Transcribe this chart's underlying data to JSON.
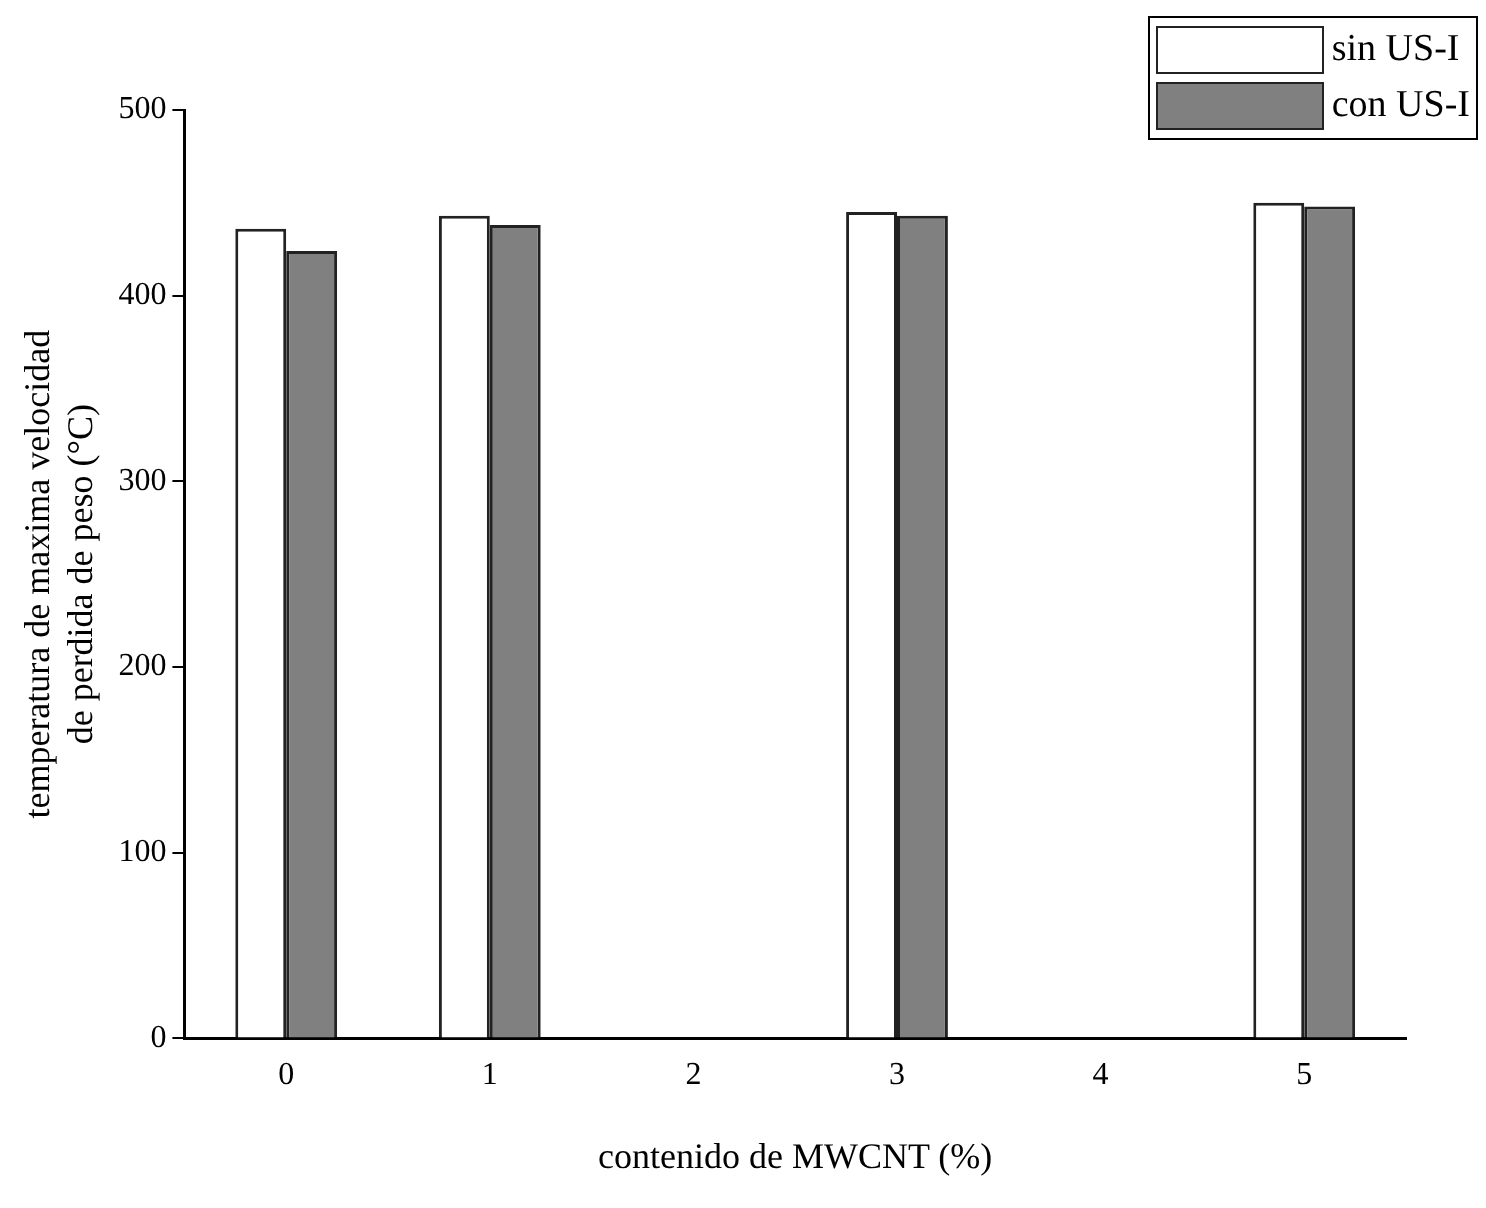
{
  "chart_data": {
    "type": "bar",
    "xlabel": "contenido de MWCNT (%)",
    "ylabel": "temperatura de maxima velocidad de perdida de peso (°C)",
    "categories": [
      "0",
      "1",
      "2",
      "3",
      "4",
      "5"
    ],
    "series": [
      {
        "name": "sin US-I",
        "color": "#ffffff",
        "values": [
          436,
          443,
          null,
          445,
          null,
          450
        ]
      },
      {
        "name": "con US-I",
        "color": "#808080",
        "values": [
          424,
          438,
          null,
          443,
          null,
          448
        ]
      }
    ],
    "ylim": [
      0,
      500
    ],
    "yticks": [
      0,
      100,
      200,
      300,
      400,
      500
    ],
    "grid": false,
    "legend": "top right"
  }
}
